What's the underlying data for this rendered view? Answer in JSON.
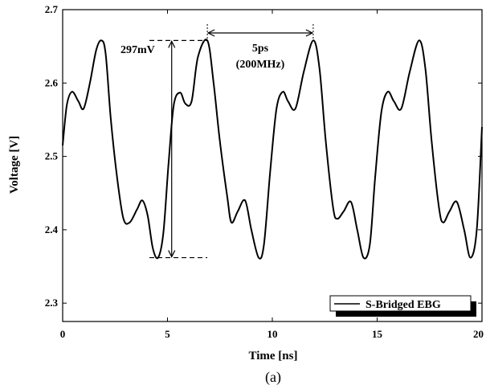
{
  "chart_data": {
    "type": "line",
    "xlabel": "Time [ns]",
    "ylabel": "Voltage [V]",
    "xlim": [
      0,
      20
    ],
    "ylim": [
      2.275,
      2.7
    ],
    "x_ticks": [
      "0",
      "5",
      "10",
      "15",
      "20"
    ],
    "y_ticks": [
      "2.3",
      "2.4",
      "2.5",
      "2.6",
      "2.7"
    ],
    "grid": false,
    "legend_position": "bottom-right",
    "series": [
      {
        "name": "S-Bridged EBG",
        "color": "#000000",
        "x": [
          0,
          0.2,
          0.45,
          0.75,
          1.0,
          1.3,
          1.6,
          1.85,
          2.05,
          2.3,
          2.6,
          2.9,
          3.2,
          3.55,
          3.8,
          4.05,
          4.3,
          4.55,
          4.8,
          5.05,
          5.3,
          5.6,
          5.85,
          6.15,
          6.45,
          6.9,
          7.2,
          7.5,
          7.85,
          8.05,
          8.35,
          8.7,
          9.0,
          9.35,
          9.6,
          9.9,
          10.2,
          10.5,
          10.75,
          11.1,
          11.5,
          11.95,
          12.25,
          12.55,
          12.9,
          13.1,
          13.4,
          13.75,
          14.05,
          14.35,
          14.65,
          14.9,
          15.2,
          15.5,
          15.8,
          16.15,
          16.55,
          17.0,
          17.3,
          17.6,
          17.95,
          18.15,
          18.45,
          18.8,
          19.15,
          19.45,
          19.75,
          20.0
        ],
        "y": [
          2.515,
          2.57,
          2.588,
          2.575,
          2.565,
          2.6,
          2.645,
          2.658,
          2.64,
          2.55,
          2.47,
          2.415,
          2.41,
          2.428,
          2.44,
          2.42,
          2.375,
          2.362,
          2.395,
          2.49,
          2.57,
          2.587,
          2.572,
          2.575,
          2.635,
          2.658,
          2.6,
          2.52,
          2.445,
          2.41,
          2.425,
          2.44,
          2.4,
          2.362,
          2.38,
          2.48,
          2.565,
          2.588,
          2.575,
          2.565,
          2.615,
          2.658,
          2.62,
          2.52,
          2.43,
          2.415,
          2.425,
          2.438,
          2.4,
          2.362,
          2.38,
          2.47,
          2.56,
          2.588,
          2.575,
          2.565,
          2.615,
          2.658,
          2.62,
          2.52,
          2.43,
          2.41,
          2.425,
          2.438,
          2.4,
          2.362,
          2.4,
          2.54
        ]
      }
    ],
    "annotations": [
      {
        "text": "297mV"
      },
      {
        "text": "5ps"
      },
      {
        "text": "(200MHz)"
      }
    ]
  },
  "caption": "(a)"
}
